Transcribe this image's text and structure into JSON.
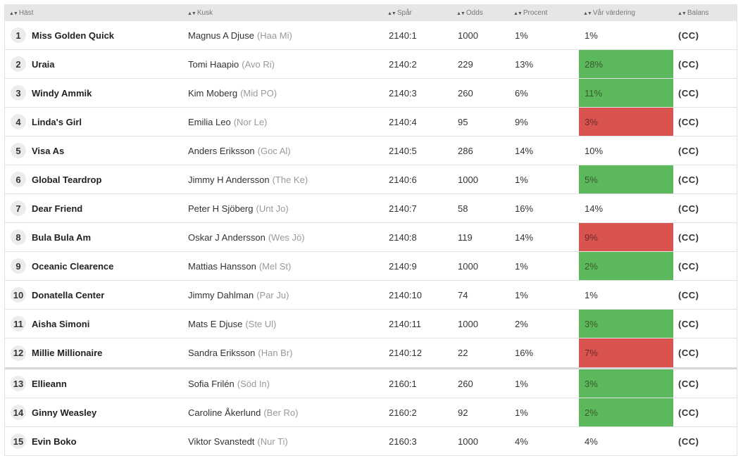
{
  "header": {
    "hast": "Häst",
    "kusk": "Kusk",
    "spar": "Spår",
    "odds": "Odds",
    "procent": "Procent",
    "var_vardering": "Vår värdering",
    "balans": "Balans"
  },
  "colors": {
    "green": "#5cb85c",
    "red": "#d9534f"
  },
  "rows": [
    {
      "num": "1",
      "horse": "Miss Golden Quick",
      "driver": "Magnus A Djuse",
      "short": "(Haa Mi)",
      "spar": "2140:1",
      "odds": "1000",
      "procent": "1%",
      "var": "1%",
      "hl": "",
      "bal": "(CC)"
    },
    {
      "num": "2",
      "horse": "Uraia",
      "driver": "Tomi Haapio",
      "short": "(Avo Ri)",
      "spar": "2140:2",
      "odds": "229",
      "procent": "13%",
      "var": "28%",
      "hl": "green",
      "bal": "(CC)"
    },
    {
      "num": "3",
      "horse": "Windy Ammik",
      "driver": "Kim Moberg",
      "short": "(Mid PO)",
      "spar": "2140:3",
      "odds": "260",
      "procent": "6%",
      "var": "11%",
      "hl": "green",
      "bal": "(CC)"
    },
    {
      "num": "4",
      "horse": "Linda's Girl",
      "driver": "Emilia Leo",
      "short": "(Nor Le)",
      "spar": "2140:4",
      "odds": "95",
      "procent": "9%",
      "var": "3%",
      "hl": "red",
      "bal": "(CC)"
    },
    {
      "num": "5",
      "horse": "Visa As",
      "driver": "Anders Eriksson",
      "short": "(Goc Al)",
      "spar": "2140:5",
      "odds": "286",
      "procent": "14%",
      "var": "10%",
      "hl": "",
      "bal": "(CC)"
    },
    {
      "num": "6",
      "horse": "Global Teardrop",
      "driver": "Jimmy H Andersson",
      "short": "(The Ke)",
      "spar": "2140:6",
      "odds": "1000",
      "procent": "1%",
      "var": "5%",
      "hl": "green",
      "bal": "(CC)"
    },
    {
      "num": "7",
      "horse": "Dear Friend",
      "driver": "Peter H Sjöberg",
      "short": "(Unt Jo)",
      "spar": "2140:7",
      "odds": "58",
      "procent": "16%",
      "var": "14%",
      "hl": "",
      "bal": "(CC)"
    },
    {
      "num": "8",
      "horse": "Bula Bula Am",
      "driver": "Oskar J Andersson",
      "short": "(Wes Jö)",
      "spar": "2140:8",
      "odds": "119",
      "procent": "14%",
      "var": "9%",
      "hl": "red",
      "bal": "(CC)"
    },
    {
      "num": "9",
      "horse": "Oceanic Clearence",
      "driver": "Mattias Hansson",
      "short": "(Mel St)",
      "spar": "2140:9",
      "odds": "1000",
      "procent": "1%",
      "var": "2%",
      "hl": "green",
      "bal": "(CC)"
    },
    {
      "num": "10",
      "horse": "Donatella Center",
      "driver": "Jimmy Dahlman",
      "short": "(Par Ju)",
      "spar": "2140:10",
      "odds": "74",
      "procent": "1%",
      "var": "1%",
      "hl": "",
      "bal": "(CC)"
    },
    {
      "num": "11",
      "horse": "Aisha Simoni",
      "driver": "Mats E Djuse",
      "short": "(Ste Ul)",
      "spar": "2140:11",
      "odds": "1000",
      "procent": "2%",
      "var": "3%",
      "hl": "green",
      "bal": "(CC)"
    },
    {
      "num": "12",
      "horse": "Millie Millionaire",
      "driver": "Sandra Eriksson",
      "short": "(Han Br)",
      "spar": "2140:12",
      "odds": "22",
      "procent": "16%",
      "var": "7%",
      "hl": "red",
      "bal": "(CC)"
    },
    {
      "num": "13",
      "horse": "Ellieann",
      "driver": "Sofia Frilén",
      "short": "(Söd In)",
      "spar": "2160:1",
      "odds": "260",
      "procent": "1%",
      "var": "3%",
      "hl": "green",
      "bal": "(CC)"
    },
    {
      "num": "14",
      "horse": "Ginny Weasley",
      "driver": "Caroline Åkerlund",
      "short": "(Ber Ro)",
      "spar": "2160:2",
      "odds": "92",
      "procent": "1%",
      "var": "2%",
      "hl": "green",
      "bal": "(CC)"
    },
    {
      "num": "15",
      "horse": "Evin Boko",
      "driver": "Viktor Svanstedt",
      "short": "(Nur Ti)",
      "spar": "2160:3",
      "odds": "1000",
      "procent": "4%",
      "var": "4%",
      "hl": "",
      "bal": "(CC)"
    }
  ]
}
